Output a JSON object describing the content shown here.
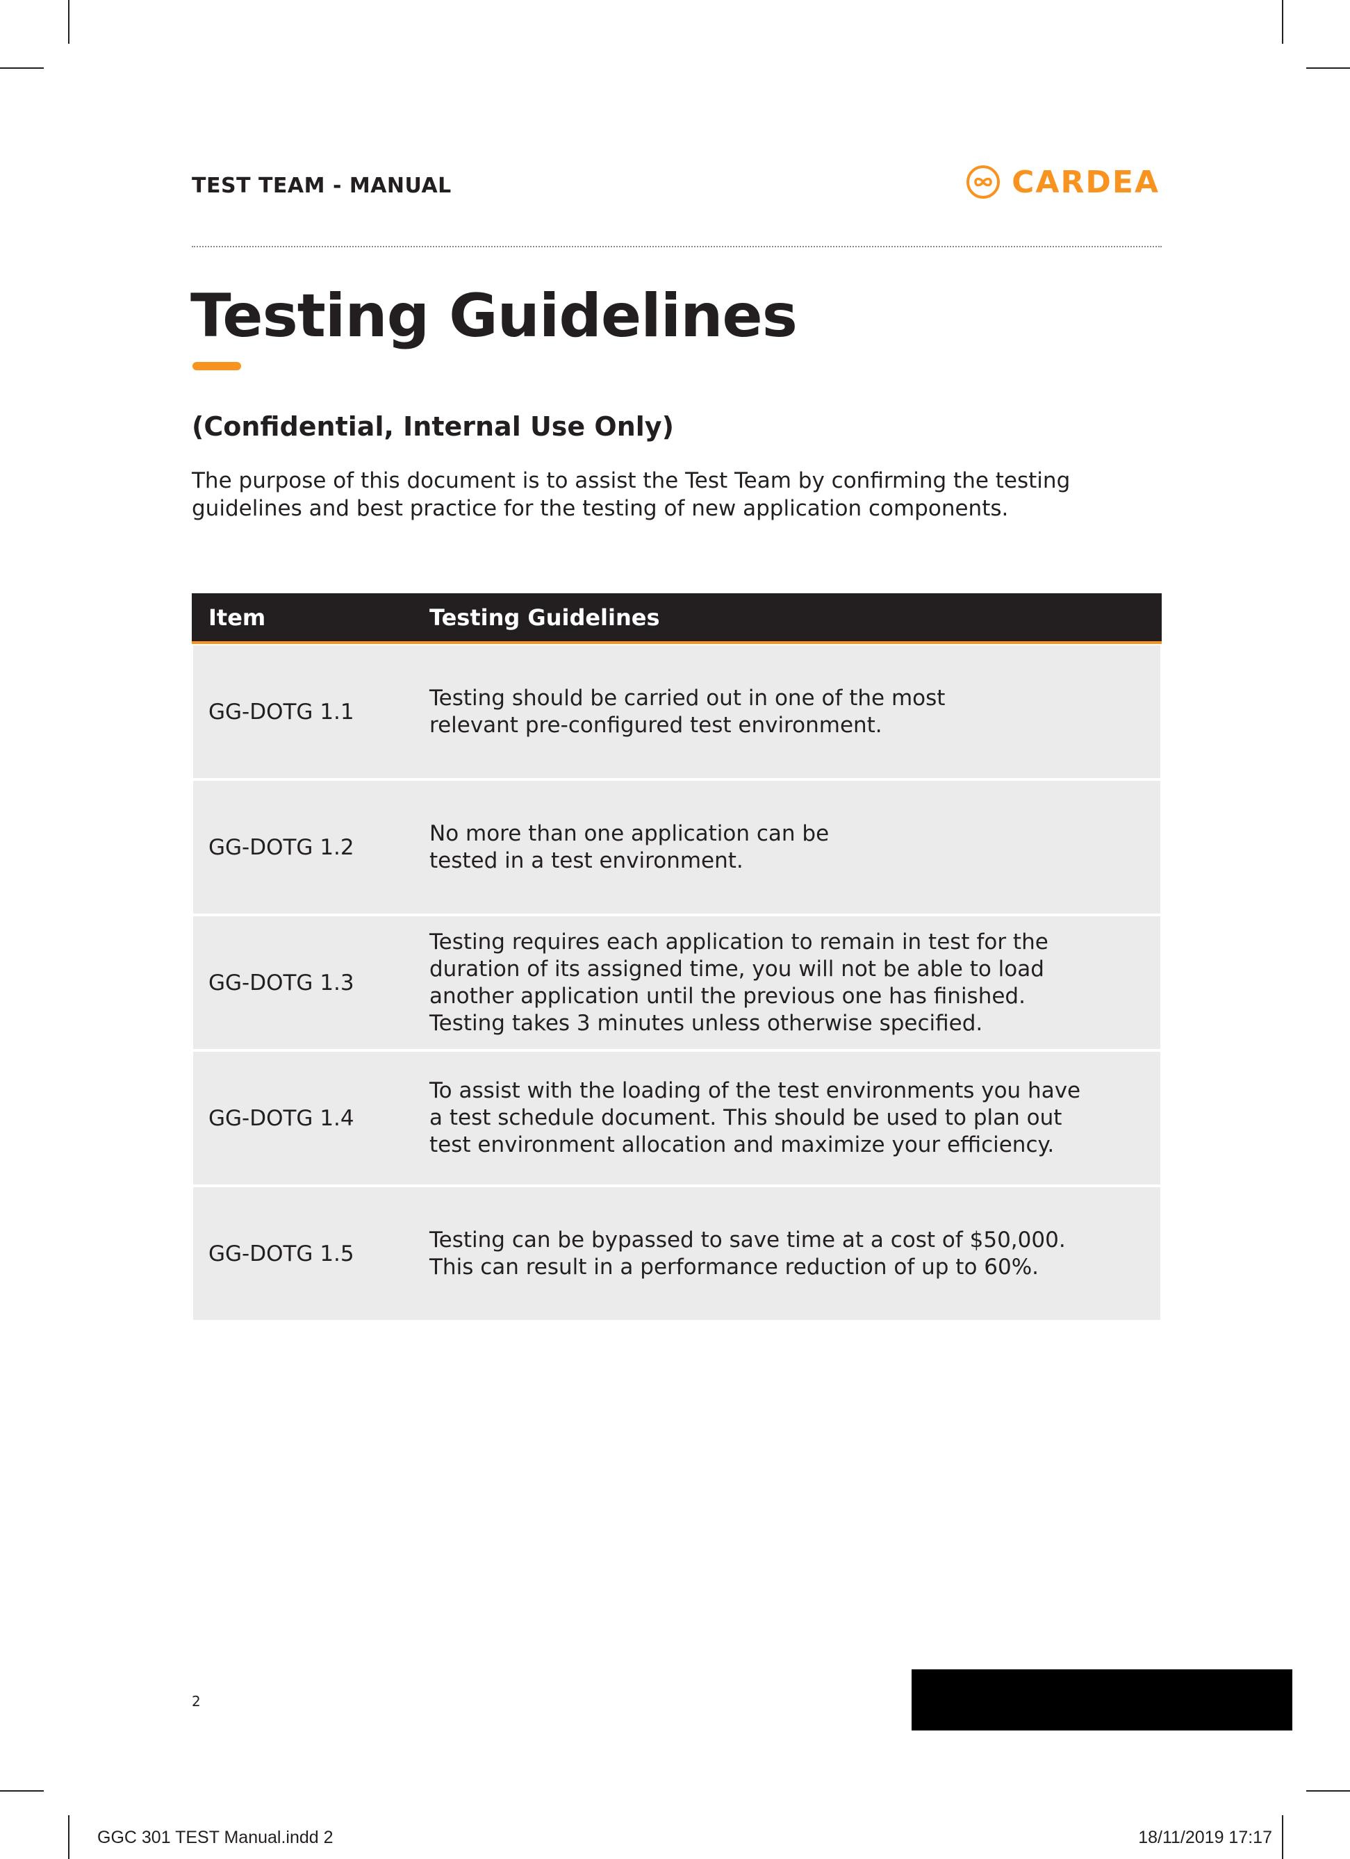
{
  "header": {
    "title": "TEST TEAM - MANUAL",
    "logo": {
      "name": "CARDEA",
      "icon": "infinity-circle-icon",
      "color": "#f7931e"
    }
  },
  "document": {
    "title": "Testing Guidelines",
    "subtitle": "(Confidential, Internal Use Only)",
    "intro_lines": [
      "The purpose of this document is to assist the Test Team by confirming the testing",
      "guidelines and best practice for the testing of new application components."
    ]
  },
  "table": {
    "columns": [
      "Item",
      "Testing Guidelines"
    ],
    "rows": [
      {
        "id": "GG-DOTG 1.1",
        "lines": [
          "Testing should be carried out in one of the most",
          "relevant pre-configured test environment."
        ]
      },
      {
        "id": "GG-DOTG 1.2",
        "lines": [
          "No more than one application can be",
          "tested in a test environment."
        ]
      },
      {
        "id": "GG-DOTG 1.3",
        "lines": [
          "Testing requires each application to remain in test for the",
          "duration of its assigned time, you will not be able to load",
          "another application until the previous one has finished.",
          "Testing takes 3 minutes unless otherwise specified."
        ]
      },
      {
        "id": "GG-DOTG 1.4",
        "lines": [
          "To assist with the loading of the test environments you have",
          "a test schedule document. This should be used to plan out",
          "test environment allocation and maximize your efficiency."
        ]
      },
      {
        "id": "GG-DOTG 1.5",
        "lines": [
          "Testing can be bypassed to save time at a cost of $50,000.",
          "This can result in a performance reduction of up to 60%."
        ]
      }
    ]
  },
  "footer": {
    "page_number": "2",
    "slug_left": "GGC 301 TEST Manual.indd   2",
    "slug_right": "18/11/2019   17:17"
  },
  "colors": {
    "accent": "#f7931e",
    "header_bg": "#231f20",
    "row_bg": "#ebebeb"
  }
}
